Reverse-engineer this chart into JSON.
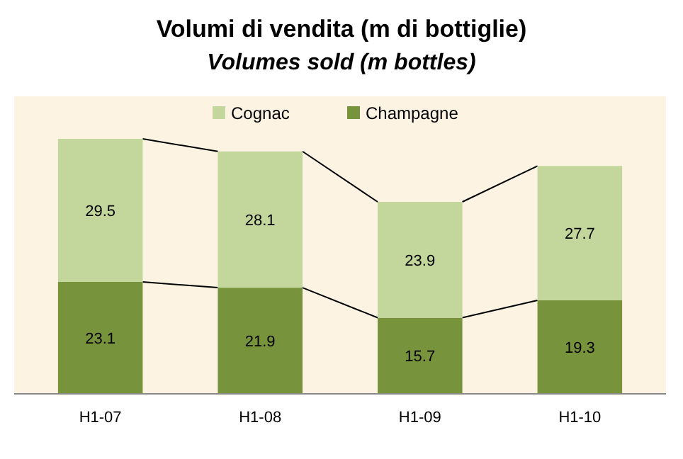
{
  "chart_data": {
    "type": "bar",
    "title": "Volumi di vendita (m di bottiglie)",
    "subtitle": "Volumes sold (m bottles)",
    "categories": [
      "H1-07",
      "H1-08",
      "H1-09",
      "H1-10"
    ],
    "stacked": true,
    "data_labels": true,
    "legend": "top",
    "series": [
      {
        "name": "Champagne",
        "color": "#77933c",
        "values": [
          23.1,
          21.9,
          15.7,
          19.3
        ]
      },
      {
        "name": "Cognac",
        "color": "#c3d69b",
        "values": [
          29.5,
          28.1,
          23.9,
          27.7
        ]
      }
    ]
  }
}
